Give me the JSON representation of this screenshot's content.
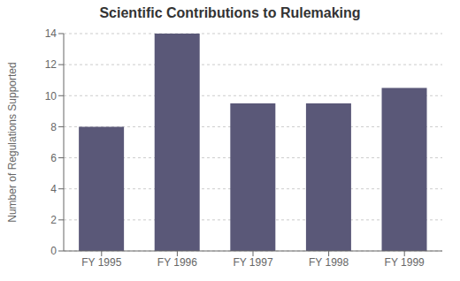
{
  "chart_data": {
    "type": "bar",
    "title": "Scientific Contributions to Rulemaking",
    "ylabel": "Number of Regulations Supported",
    "categories": [
      "FY 1995",
      "FY 1996",
      "FY 1997",
      "FY 1998",
      "FY 1999"
    ],
    "values": [
      8,
      14,
      9.5,
      9.5,
      10.5
    ],
    "color": "#5a5878",
    "ylim": [
      0,
      14
    ],
    "yticks": [
      0,
      2,
      4,
      6,
      8,
      10,
      12,
      14
    ],
    "grid": true
  }
}
